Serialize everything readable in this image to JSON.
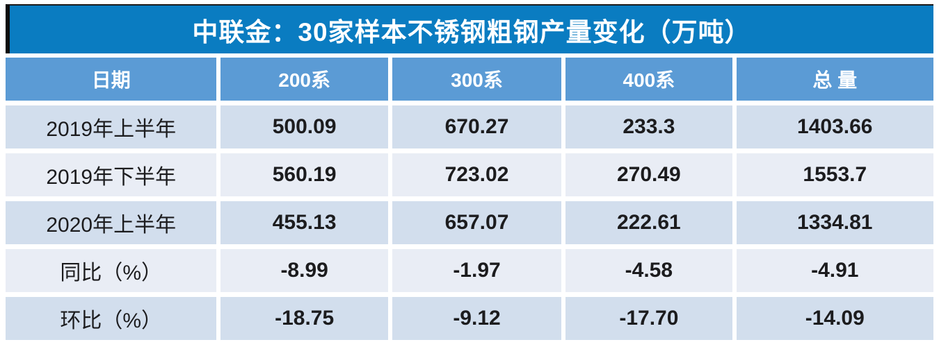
{
  "title": "中联金：30家样本不锈钢粗钢产量变化（万吨）",
  "colors": {
    "title_bg": "#0a7cc1",
    "header_bg": "#5b9bd5",
    "row_band_dark": "#d2deed",
    "row_band_light": "#e9edf5",
    "title_text": "#ffffff",
    "cell_text": "#1c1c1e",
    "title_left_bar": "#0d0d0d"
  },
  "table": {
    "headers": [
      "日期",
      "200系",
      "300系",
      "400系",
      "总 量"
    ],
    "rows": [
      {
        "label": "2019年上半年",
        "values": [
          "500.09",
          "670.27",
          "233.3",
          "1403.66"
        ]
      },
      {
        "label": "2019年下半年",
        "values": [
          "560.19",
          "723.02",
          "270.49",
          "1553.7"
        ]
      },
      {
        "label": "2020年上半年",
        "values": [
          "455.13",
          "657.07",
          "222.61",
          "1334.81"
        ]
      },
      {
        "label": "同比（%）",
        "values": [
          "-8.99",
          "-1.97",
          "-4.58",
          "-4.91"
        ]
      },
      {
        "label": "环比（%）",
        "values": [
          "-18.75",
          "-9.12",
          "-17.70",
          "-14.09"
        ]
      }
    ]
  },
  "chart_data": {
    "type": "table",
    "title": "中联金：30家样本不锈钢粗钢产量变化（万吨）",
    "columns": [
      "日期",
      "200系",
      "300系",
      "400系",
      "总量"
    ],
    "rows": [
      [
        "2019年上半年",
        500.09,
        670.27,
        233.3,
        1403.66
      ],
      [
        "2019年下半年",
        560.19,
        723.02,
        270.49,
        1553.7
      ],
      [
        "2020年上半年",
        455.13,
        657.07,
        222.61,
        1334.81
      ],
      [
        "同比（%）",
        -8.99,
        -1.97,
        -4.58,
        -4.91
      ],
      [
        "环比（%）",
        -18.75,
        -9.12,
        -17.7,
        -14.09
      ]
    ],
    "units": "万吨",
    "notes": "rows 同比/环比 are percent changes"
  }
}
